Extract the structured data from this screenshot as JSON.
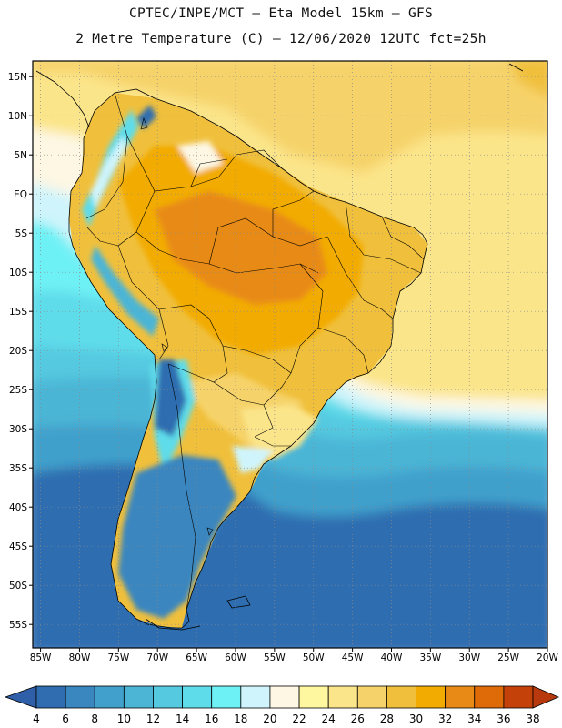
{
  "header": {
    "line1": "CPTEC/INPE/MCT –  Eta Model 15km – GFS",
    "line2": "2 Metre Temperature (C) – 12/06/2020 12UTC fct=25h"
  },
  "map": {
    "lat_range": [
      -58,
      17
    ],
    "lon_range": [
      -86,
      -20
    ],
    "lat_ticks": [
      {
        "value": 15,
        "label": "15N"
      },
      {
        "value": 10,
        "label": "10N"
      },
      {
        "value": 5,
        "label": "5N"
      },
      {
        "value": 0,
        "label": "EQ"
      },
      {
        "value": -5,
        "label": "5S"
      },
      {
        "value": -10,
        "label": "10S"
      },
      {
        "value": -15,
        "label": "15S"
      },
      {
        "value": -20,
        "label": "20S"
      },
      {
        "value": -25,
        "label": "25S"
      },
      {
        "value": -30,
        "label": "30S"
      },
      {
        "value": -35,
        "label": "35S"
      },
      {
        "value": -40,
        "label": "40S"
      },
      {
        "value": -45,
        "label": "45S"
      },
      {
        "value": -50,
        "label": "50S"
      },
      {
        "value": -55,
        "label": "55S"
      }
    ],
    "lon_ticks": [
      {
        "value": -85,
        "label": "85W"
      },
      {
        "value": -80,
        "label": "80W"
      },
      {
        "value": -75,
        "label": "75W"
      },
      {
        "value": -70,
        "label": "70W"
      },
      {
        "value": -65,
        "label": "65W"
      },
      {
        "value": -60,
        "label": "60W"
      },
      {
        "value": -55,
        "label": "55W"
      },
      {
        "value": -50,
        "label": "50W"
      },
      {
        "value": -45,
        "label": "45W"
      },
      {
        "value": -40,
        "label": "40W"
      },
      {
        "value": -35,
        "label": "35W"
      },
      {
        "value": -30,
        "label": "30W"
      },
      {
        "value": -25,
        "label": "25W"
      },
      {
        "value": -20,
        "label": "20W"
      }
    ]
  },
  "colorbar": {
    "levels": [
      "4",
      "6",
      "8",
      "10",
      "12",
      "14",
      "16",
      "18",
      "20",
      "22",
      "24",
      "26",
      "28",
      "30",
      "32",
      "34",
      "36",
      "38"
    ],
    "colors": [
      "#2f6db0",
      "#3a86bf",
      "#41a0cc",
      "#4cb5d6",
      "#55c9e0",
      "#5fdcea",
      "#6ef1f5",
      "#cff4fb",
      "#fdf7e3",
      "#fff6a0",
      "#fbe58a",
      "#f6d36a",
      "#f0c03c",
      "#f2ab00",
      "#e88b16",
      "#de6a08",
      "#c4420a"
    ],
    "under_color": "#2f5fa8",
    "over_color": "#b8390e"
  }
}
